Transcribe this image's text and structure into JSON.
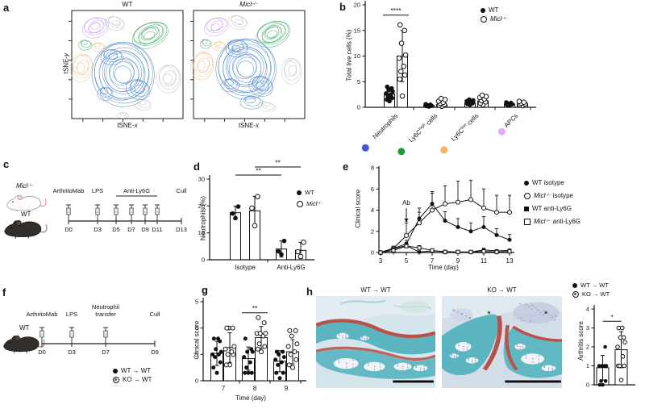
{
  "panels": {
    "a": "a",
    "b": "b",
    "c": "c",
    "d": "d",
    "e": "e",
    "f": "f",
    "g": "g",
    "h": "h"
  },
  "legends": {
    "wt": [
      {
        "t": "WT"
      }
    ],
    "micl": [
      {
        "t": "Micl",
        "i": true
      },
      {
        "t": "−/−",
        "sup": true
      }
    ],
    "wt_isotype": [
      {
        "t": "WT isotype"
      }
    ],
    "micl_isotype": [
      {
        "t": "Micl",
        "i": true
      },
      {
        "t": "−/−",
        "sup": true
      },
      {
        "t": " isotype"
      }
    ],
    "wt_anti": [
      {
        "t": "WT anti-Ly6G"
      }
    ],
    "micl_anti": [
      {
        "t": "Micl",
        "i": true
      },
      {
        "t": "−/−",
        "sup": true
      },
      {
        "t": " anti-Ly6G"
      }
    ],
    "wt_wt": [
      {
        "t": "WT → WT"
      }
    ],
    "ko_wt": [
      {
        "t": "KO → WT"
      }
    ]
  },
  "panel_a": {
    "label": "a",
    "plots": [
      {
        "title_parts": [
          {
            "t": "WT"
          }
        ]
      },
      {
        "title_parts": [
          {
            "t": "Micl",
            "i": true
          },
          {
            "t": "−/−",
            "sup": true
          }
        ]
      }
    ],
    "xlabel_parts": [
      {
        "t": "tSNE-"
      },
      {
        "t": "x",
        "i": true
      }
    ],
    "ylabel_parts": [
      {
        "t": "tSNE-"
      },
      {
        "t": "y",
        "i": true
      }
    ],
    "cluster_colors": {
      "blue": "#5b8fca",
      "green": "#55b178",
      "orange": "#eec497",
      "purple": "#d0a7e7",
      "grey": "#c6c6c6"
    },
    "clusters_wt": [
      [
        "purple",
        21,
        15,
        12,
        9,
        -20,
        6
      ],
      [
        "grey",
        39,
        11,
        9,
        6,
        15,
        4
      ],
      [
        "green",
        12,
        31,
        6,
        4.5,
        0,
        3
      ],
      [
        "orange",
        9,
        52,
        10,
        13,
        10,
        5
      ],
      [
        "orange",
        24,
        33,
        6,
        4,
        0,
        3
      ],
      [
        "green",
        70,
        22,
        17,
        11,
        -25,
        8
      ],
      [
        "grey",
        87,
        62,
        11,
        13,
        0,
        5
      ],
      [
        "grey",
        64,
        86,
        8,
        5,
        10,
        3
      ],
      [
        "grey",
        46,
        96,
        5,
        2.5,
        0,
        2
      ],
      [
        "blue",
        46,
        58,
        28,
        30,
        -10,
        12
      ],
      [
        "blue",
        36,
        42,
        10,
        7,
        0,
        4
      ],
      [
        "blue",
        60,
        72,
        11,
        9,
        20,
        4
      ],
      [
        "blue",
        30,
        76,
        7,
        6,
        0,
        3
      ]
    ],
    "clusters_ko": [
      [
        "purple",
        20,
        14,
        11,
        8,
        -20,
        5
      ],
      [
        "grey",
        40,
        10,
        9,
        6,
        15,
        4
      ],
      [
        "green",
        11,
        30,
        5,
        4,
        0,
        3
      ],
      [
        "orange",
        8,
        50,
        10,
        13,
        10,
        5
      ],
      [
        "orange",
        23,
        32,
        6,
        4,
        0,
        3
      ],
      [
        "green",
        71,
        21,
        16,
        11,
        -25,
        8
      ],
      [
        "grey",
        88,
        55,
        9,
        12,
        0,
        4
      ],
      [
        "grey",
        66,
        88,
        8,
        4,
        10,
        3
      ],
      [
        "blue",
        47,
        53,
        27,
        28,
        -8,
        12
      ],
      [
        "blue",
        39,
        34,
        10,
        8,
        0,
        5
      ],
      [
        "blue",
        61,
        69,
        11,
        9,
        20,
        5
      ],
      [
        "blue",
        33,
        68,
        8,
        6,
        0,
        3
      ],
      [
        "blue",
        52,
        84,
        10,
        6,
        0,
        3
      ]
    ]
  },
  "panel_c": {
    "label": "c",
    "mouse_labels": [
      [
        {
          "t": "Micl",
          "i": true
        },
        {
          "t": "−/−",
          "sup": true
        }
      ],
      [
        {
          "t": "WT"
        }
      ]
    ],
    "timeline": {
      "events": [
        {
          "label": "ArthritoMab",
          "day": 0,
          "syringe": true
        },
        {
          "label": "LPS",
          "day": 3,
          "syringe": true
        },
        {
          "label": "Cull",
          "day": 13,
          "syringe": false
        }
      ],
      "bracket": {
        "label": "Anti-Ly6G",
        "from": 5,
        "to": 11,
        "syringe_days": [
          5,
          7,
          9,
          11
        ]
      },
      "day_values": [
        0,
        3,
        5,
        7,
        9,
        11,
        13
      ],
      "day_labels": [
        "D0",
        "D3",
        "D5",
        "D7",
        "D9",
        "D11",
        "D13"
      ]
    }
  },
  "panel_f": {
    "label": "f",
    "mouse_labels": [
      [
        {
          "t": "WT"
        }
      ]
    ],
    "timeline": {
      "events": [
        {
          "label": "ArthritoMab",
          "day": 0,
          "syringe": true
        },
        {
          "label": "LPS",
          "day": 3,
          "syringe": true
        },
        {
          "label": "Neutrophil transfer",
          "day": 7,
          "syringe": true,
          "two_line": true
        },
        {
          "label": "Cull",
          "day": 9,
          "syringe": false
        }
      ],
      "day_values": [
        0,
        3,
        7,
        9
      ],
      "day_labels": [
        "D0",
        "D3",
        "D7",
        "D9"
      ]
    }
  },
  "panel_h": {
    "label": "h",
    "images": [
      {
        "title_parts": [
          {
            "t": "WT → WT"
          }
        ],
        "asterisks": []
      },
      {
        "title_parts": [
          {
            "t": "KO → WT"
          }
        ],
        "asterisks": [
          [
            53,
            27
          ],
          [
            117,
            27
          ]
        ]
      }
    ]
  },
  "chart_data": [
    {
      "id": "b",
      "type": "bar",
      "ylabel": "Total live cells (%)",
      "ylim": [
        0,
        20
      ],
      "yticks": [
        0,
        5,
        10,
        15,
        20
      ],
      "group_labels": [
        [
          {
            "t": "Neutrophils"
          }
        ],
        [
          {
            "t": "Ly6C"
          },
          {
            "t": "high",
            "sup": true
          },
          {
            "t": " cells"
          }
        ],
        [
          {
            "t": "Ly6C"
          },
          {
            "t": "low",
            "sup": true
          },
          {
            "t": " cells"
          }
        ],
        [
          {
            "t": "APCs"
          }
        ]
      ],
      "group_dot_colors": [
        "#4a53da",
        "#1d9e3d",
        "#f7b464",
        "#e3abf1"
      ],
      "series": [
        {
          "name": "WT",
          "marker": "filled-circle",
          "values": [
            2.6,
            0.35,
            0.9,
            0.65
          ],
          "errors": [
            1.3,
            0,
            0,
            0
          ],
          "points": [
            [
              1.2,
              1.5,
              1.8,
              2.1,
              2.4,
              2.7,
              3.1,
              3.4,
              3.7,
              4.0
            ],
            [
              0.15,
              0.25,
              0.3,
              0.4,
              0.5,
              0.6
            ],
            [
              0.5,
              0.65,
              0.8,
              0.9,
              1.05,
              1.2,
              1.35,
              1.5
            ],
            [
              0.4,
              0.5,
              0.6,
              0.7,
              0.85,
              0.95
            ]
          ]
        },
        {
          "name": "Micl−/−",
          "marker": "open-circle",
          "values": [
            10,
            0.55,
            1.25,
            0.7
          ],
          "errors": [
            5,
            0,
            0,
            0
          ],
          "points": [
            [
              2.2,
              5.5,
              6.3,
              7,
              8,
              9.6,
              10.2,
              12.5,
              15,
              16.1
            ],
            [
              0.2,
              0.4,
              0.55,
              0.75,
              0.95,
              1.2,
              1.5,
              1.7
            ],
            [
              0.5,
              0.8,
              1.05,
              1.3,
              1.6,
              1.9,
              2.1,
              2.35
            ],
            [
              0.3,
              0.5,
              0.65,
              0.8,
              1,
              1.15
            ]
          ]
        }
      ],
      "significance": [
        {
          "label": "****",
          "group": 0,
          "y": 18
        }
      ]
    },
    {
      "id": "d",
      "type": "bar",
      "ylabel": "Neutrophils (%)",
      "ylim": [
        0,
        30
      ],
      "yticks": [
        0,
        10,
        20,
        30
      ],
      "group_labels": [
        [
          {
            "t": "Isotype"
          }
        ],
        [
          {
            "t": "Anti-Ly6G"
          }
        ]
      ],
      "series": [
        {
          "name": "WT",
          "marker": "filled-circle",
          "values": [
            17.5,
            4
          ],
          "errors": [
            2.4,
            3
          ],
          "points": [
            [
              15.5,
              17.2,
              19.8
            ],
            [
              2,
              3.1,
              7
            ]
          ]
        },
        {
          "name": "Micl−/−",
          "marker": "open-circle",
          "values": [
            18.2,
            3.5
          ],
          "errors": [
            5.4,
            3
          ],
          "points": [
            [
              12.7,
              19.2,
              23.5
            ],
            [
              1.2,
              3,
              6.5
            ]
          ]
        }
      ],
      "significance": [
        {
          "label": "**",
          "x1": [
            0,
            0
          ],
          "x2": [
            1,
            0
          ],
          "y": 31.5
        },
        {
          "label": "**",
          "x1": [
            0,
            1
          ],
          "x2": [
            1,
            1
          ],
          "y": 34.5
        }
      ]
    },
    {
      "id": "e",
      "type": "line",
      "ylabel": "Clinical score",
      "xlabel": "Time (day)",
      "ylim": [
        0,
        8
      ],
      "yticks": [
        0,
        2,
        4,
        6,
        8
      ],
      "x": [
        3,
        4,
        5,
        6,
        7,
        8,
        9,
        10,
        11,
        12,
        13
      ],
      "xtick_labels": [
        3,
        5,
        7,
        9,
        11,
        13
      ],
      "annotation": {
        "label": "Ab",
        "x": 5
      },
      "series": [
        {
          "name": "WT isotype",
          "marker": "filled-circle",
          "values": [
            0,
            0.4,
            0.8,
            3.2,
            4.6,
            3,
            2.4,
            2,
            2.4,
            1.65,
            1.2
          ],
          "err_up": [
            0,
            0.15,
            0.35,
            1,
            1.15,
            0.85,
            0.8,
            0.8,
            1,
            0.6,
            0.5
          ]
        },
        {
          "name": "Micl−/− isotype",
          "marker": "open-circle",
          "values": [
            0,
            0.4,
            1.6,
            2.8,
            4,
            4.6,
            4.75,
            5,
            4.2,
            3.8,
            3.8
          ],
          "err_up": [
            0,
            0.2,
            1.2,
            1,
            1.6,
            1.7,
            2,
            1.8,
            1.8,
            1.6,
            1.6
          ]
        },
        {
          "name": "WT anti-Ly6G",
          "marker": "filled-square",
          "values": [
            0,
            0.35,
            0.65,
            0.05,
            0.15,
            0.1,
            0.05,
            0.05,
            0.25,
            0.15,
            0.2
          ],
          "err_up": [
            0,
            0.15,
            0.3,
            0,
            0.1,
            0,
            0,
            0,
            0.15,
            0.1,
            0.1
          ]
        },
        {
          "name": "Micl−/− anti-Ly6G",
          "marker": "open-square",
          "values": [
            0,
            0.2,
            0.6,
            0.45,
            0.2,
            0.05,
            0.05,
            0.05,
            0.1,
            0.05,
            0.1
          ],
          "err_up": [
            0,
            0.1,
            0.25,
            0.2,
            0.1,
            0,
            0,
            0,
            0,
            0,
            0
          ]
        }
      ]
    },
    {
      "id": "g",
      "type": "bar",
      "ylabel": "Clinical score",
      "xlabel": "Time (day)",
      "ylim": [
        0,
        15
      ],
      "yticks": [
        0,
        5,
        10,
        15
      ],
      "group_labels": [
        [
          {
            "t": "7"
          }
        ],
        [
          {
            "t": "8"
          }
        ],
        [
          {
            "t": "9"
          }
        ]
      ],
      "series": [
        {
          "name": "WT → WT",
          "marker": "filled-circle",
          "values": [
            5.2,
            4.2,
            3.7
          ],
          "errors": [
            2.3,
            2.2,
            2
          ],
          "points": [
            [
              1.5,
              2.5,
              3.5,
              4.5,
              5,
              5,
              5.5,
              6,
              7.5,
              8,
              8
            ],
            [
              1.5,
              1.5,
              1.5,
              2.5,
              3.5,
              4.5,
              5.5,
              5.5,
              6,
              8
            ],
            [
              0.5,
              1.5,
              1.5,
              3,
              3.5,
              4,
              4.5,
              5,
              5.5,
              5.5
            ]
          ]
        },
        {
          "name": "KO → WT",
          "marker": "open-circle",
          "values": [
            6.3,
            8.2,
            5.5
          ],
          "errors": [
            2.8,
            2.1,
            2.3
          ],
          "points": [
            [
              3,
              3,
              5,
              5,
              5.5,
              6,
              6.5,
              10,
              10,
              10
            ],
            [
              5.5,
              6,
              6.5,
              7,
              8.5,
              9,
              9,
              9,
              11,
              12
            ],
            [
              2.5,
              3,
              4,
              5,
              5.5,
              6.5,
              7,
              8.5,
              9.5,
              9.5
            ]
          ]
        }
      ],
      "significance": [
        {
          "label": "**",
          "group": 1,
          "y": 12.9
        }
      ]
    },
    {
      "id": "h",
      "type": "bar",
      "ylabel": "Arthritis score",
      "ylim": [
        0,
        4
      ],
      "yticks": [
        0,
        1,
        2,
        3,
        4
      ],
      "group_labels": [
        []
      ],
      "series": [
        {
          "name": "WT → WT",
          "marker": "filled-circle",
          "values": [
            0.9
          ],
          "errors": [
            0.65
          ],
          "points": [
            [
              0,
              0,
              0.2,
              0.2,
              1,
              1,
              1,
              1,
              2
            ]
          ]
        },
        {
          "name": "KO → WT",
          "marker": "open-circle",
          "values": [
            1.85
          ],
          "errors": [
            0.95
          ],
          "points": [
            [
              0.25,
              1,
              1,
              1,
              1.5,
              2,
              2.25,
              2.5,
              2.5,
              3,
              3
            ]
          ]
        }
      ],
      "significance": [
        {
          "label": "*",
          "x1": [
            0,
            0
          ],
          "x2": [
            0,
            1
          ],
          "y": 3.35
        }
      ]
    }
  ]
}
